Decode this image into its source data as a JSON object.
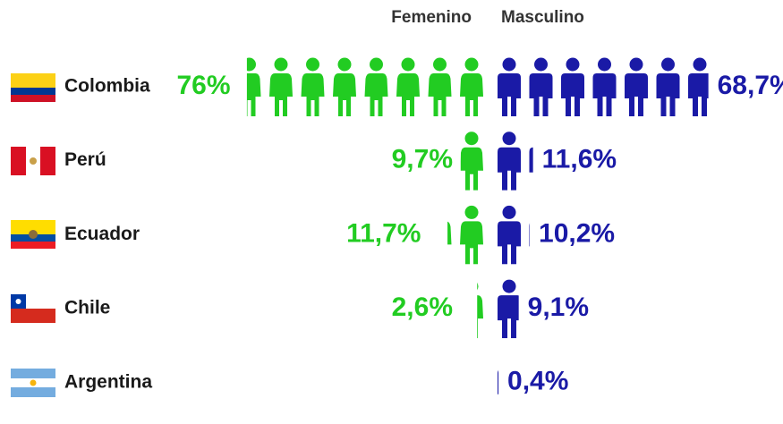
{
  "chart_data": {
    "type": "pictogram",
    "categories": [
      "Colombia",
      "Perú",
      "Ecuador",
      "Chile",
      "Argentina"
    ],
    "series": [
      {
        "name": "Femenino",
        "color": "#22cc22",
        "values": [
          76,
          9.7,
          11.7,
          2.6,
          null
        ],
        "value_labels": [
          "76%",
          "9,7%",
          "11,7%",
          "2,6%",
          null
        ]
      },
      {
        "name": "Masculino",
        "color": "#1a1aa6",
        "values": [
          68.7,
          11.6,
          10.2,
          9.1,
          0.4
        ],
        "value_labels": [
          "68,7%",
          "11,6%",
          "10,2%",
          "9,1%",
          "0,4%"
        ]
      }
    ]
  }
}
